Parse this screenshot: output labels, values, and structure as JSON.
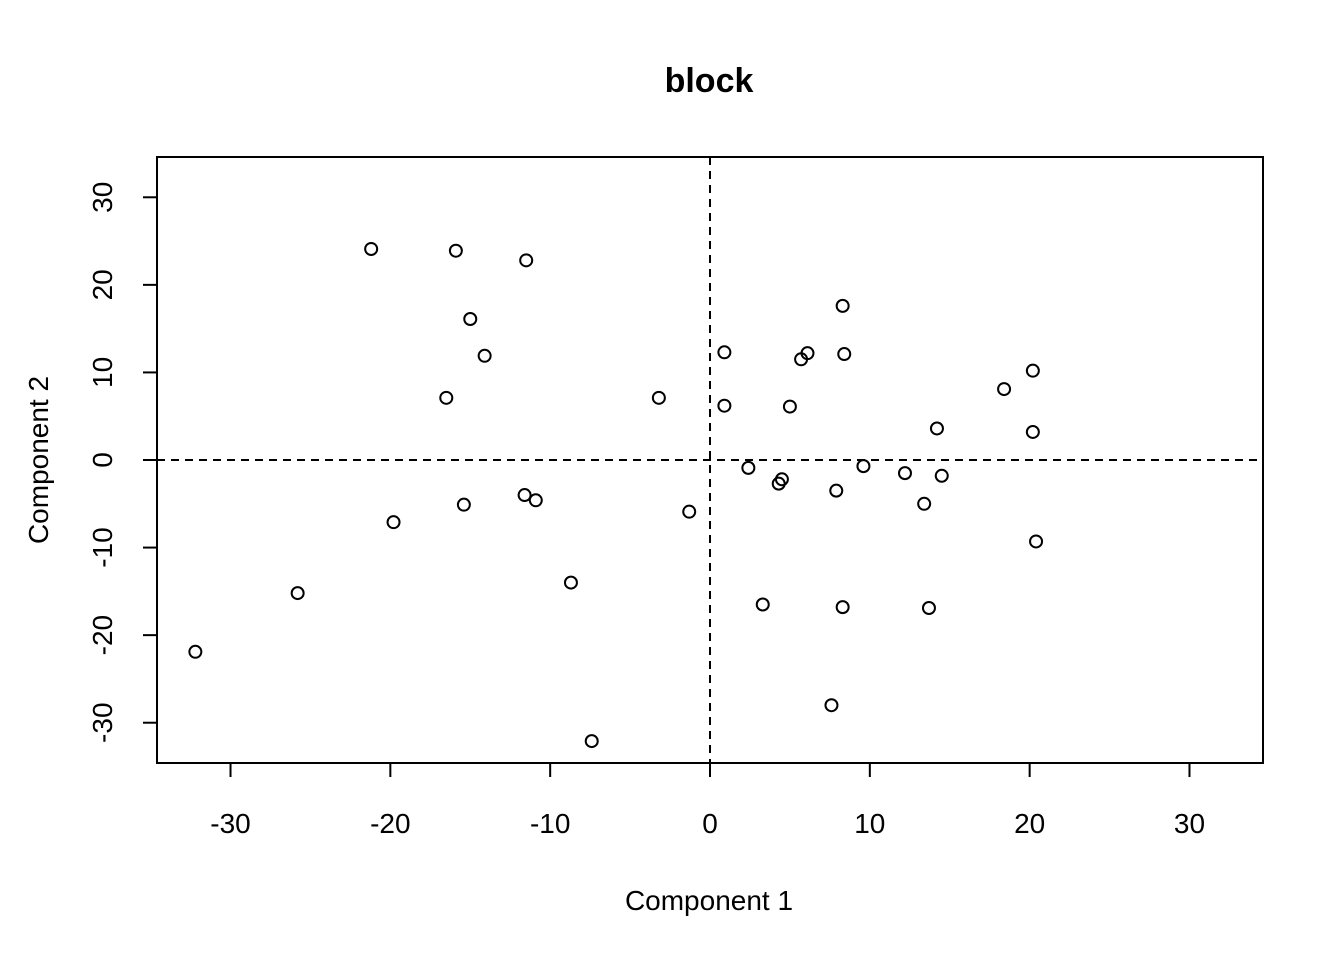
{
  "chart_data": {
    "type": "scatter",
    "title": "block",
    "xlabel": "Component 1",
    "ylabel": "Component 2",
    "xlim": [
      -34.6,
      34.6
    ],
    "ylim": [
      -34.6,
      34.6
    ],
    "xticks": [
      "-30",
      "-20",
      "-10",
      "0",
      "10",
      "20",
      "30"
    ],
    "yticks": [
      "-30",
      "-20",
      "-10",
      "0",
      "10",
      "20",
      "30"
    ],
    "reference_lines": {
      "x": 0,
      "y": 0,
      "style": "dashed"
    },
    "marker": "open-circle",
    "grid": false,
    "legend": "none",
    "points": [
      {
        "x": -21.2,
        "y": 24.1
      },
      {
        "x": -15.9,
        "y": 23.9
      },
      {
        "x": -11.5,
        "y": 22.8
      },
      {
        "x": -15.0,
        "y": 16.1
      },
      {
        "x": -14.1,
        "y": 11.9
      },
      {
        "x": -16.5,
        "y": 7.1
      },
      {
        "x": -3.2,
        "y": 7.1
      },
      {
        "x": 0.9,
        "y": 12.3
      },
      {
        "x": 0.9,
        "y": 6.2
      },
      {
        "x": 5.7,
        "y": 11.5
      },
      {
        "x": 6.1,
        "y": 12.2
      },
      {
        "x": 8.3,
        "y": 17.6
      },
      {
        "x": 8.4,
        "y": 12.1
      },
      {
        "x": 5.0,
        "y": 6.1
      },
      {
        "x": 18.4,
        "y": 8.1
      },
      {
        "x": 20.2,
        "y": 10.2
      },
      {
        "x": 14.2,
        "y": 3.6
      },
      {
        "x": 20.2,
        "y": 3.2
      },
      {
        "x": 2.4,
        "y": -0.9
      },
      {
        "x": 4.5,
        "y": -2.2
      },
      {
        "x": 4.3,
        "y": -2.7
      },
      {
        "x": 9.6,
        "y": -0.7
      },
      {
        "x": 12.2,
        "y": -1.5
      },
      {
        "x": 14.5,
        "y": -1.8
      },
      {
        "x": 7.9,
        "y": -3.5
      },
      {
        "x": 13.4,
        "y": -5.0
      },
      {
        "x": 20.4,
        "y": -9.3
      },
      {
        "x": -11.6,
        "y": -4.0
      },
      {
        "x": -10.9,
        "y": -4.6
      },
      {
        "x": -15.4,
        "y": -5.1
      },
      {
        "x": -19.8,
        "y": -7.1
      },
      {
        "x": -1.3,
        "y": -5.9
      },
      {
        "x": -8.7,
        "y": -14.0
      },
      {
        "x": -25.8,
        "y": -15.2
      },
      {
        "x": -32.2,
        "y": -21.9
      },
      {
        "x": 3.3,
        "y": -16.5
      },
      {
        "x": 8.3,
        "y": -16.8
      },
      {
        "x": 13.7,
        "y": -16.9
      },
      {
        "x": 7.6,
        "y": -28.0
      },
      {
        "x": -7.4,
        "y": -32.1
      }
    ]
  }
}
